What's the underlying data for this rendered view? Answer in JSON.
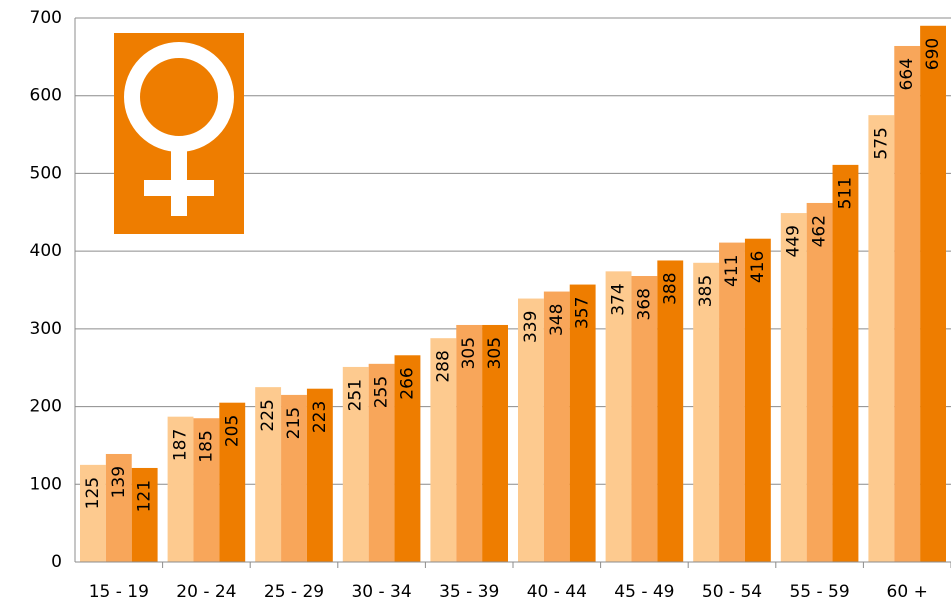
{
  "chart_data": {
    "type": "bar",
    "categories": [
      "15 - 19",
      "20 - 24",
      "25 - 29",
      "30 - 34",
      "35 - 39",
      "40 - 44",
      "45 - 49",
      "50 - 54",
      "55 - 59",
      "60 +"
    ],
    "series": [
      {
        "color": "#fdca8f",
        "values": [
          125,
          187,
          225,
          251,
          288,
          339,
          374,
          385,
          449,
          575
        ]
      },
      {
        "color": "#f8a65a",
        "values": [
          139,
          185,
          215,
          255,
          305,
          348,
          368,
          411,
          462,
          664
        ]
      },
      {
        "color": "#ee7d00",
        "values": [
          121,
          205,
          223,
          266,
          305,
          357,
          388,
          416,
          511,
          690
        ]
      }
    ],
    "ylim": [
      0,
      700
    ],
    "yticks": [
      0,
      100,
      200,
      300,
      400,
      500,
      600,
      700
    ],
    "grid": true,
    "data_labels": true
  }
}
